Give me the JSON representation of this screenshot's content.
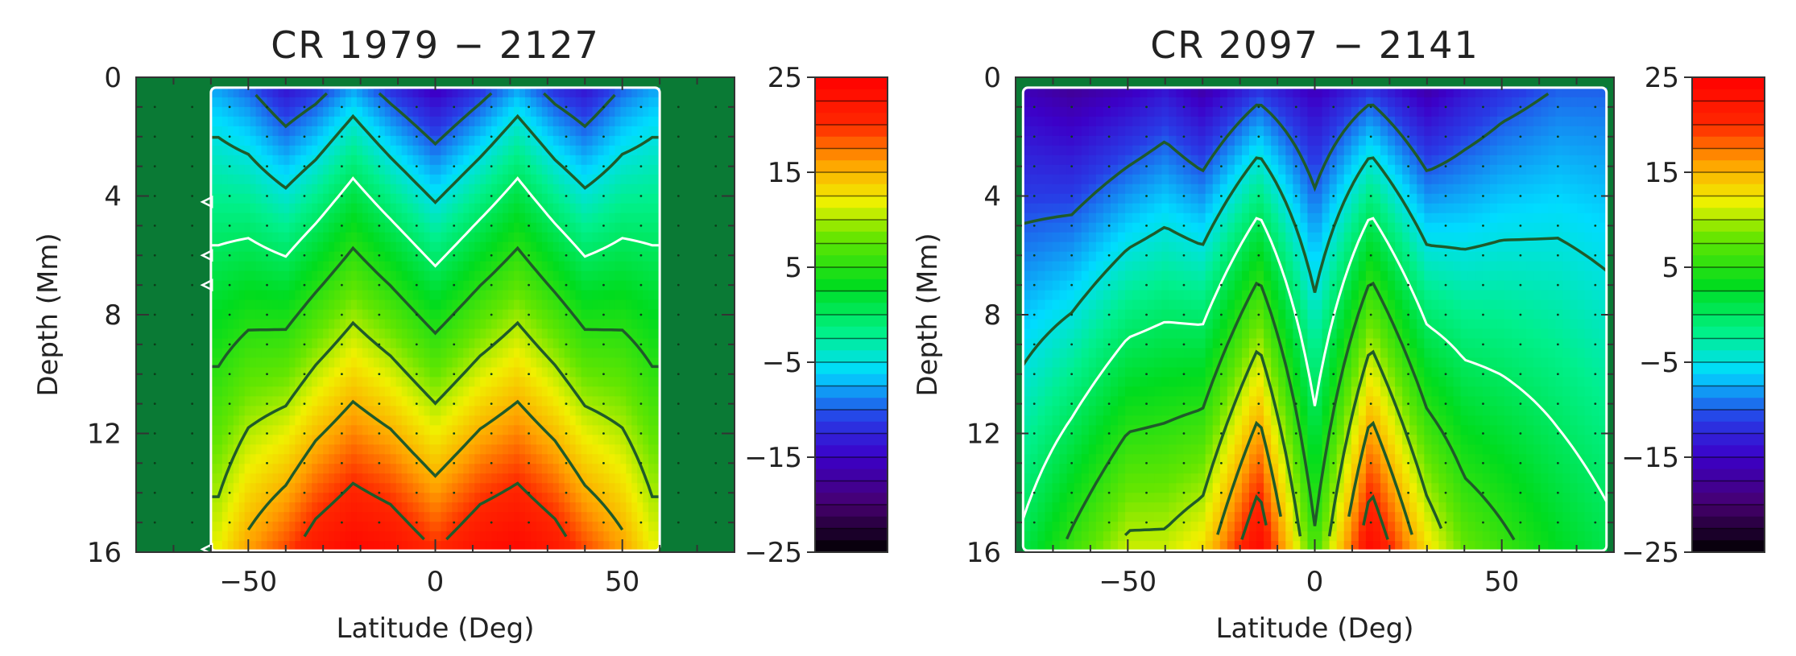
{
  "chart_data": [
    {
      "type": "heatmap",
      "title": "CR 1979 − 2127",
      "xlabel": "Latitude (Deg)",
      "ylabel": "Depth (Mm)",
      "xlim": [
        -80,
        80
      ],
      "ylim": [
        0,
        16
      ],
      "xticks": [
        -50,
        0,
        50
      ],
      "xtick_labels": [
        "−50",
        "0",
        "50"
      ],
      "yticks": [
        0,
        4,
        8,
        12,
        16
      ],
      "ytick_labels": [
        "0",
        "4",
        "8",
        "12",
        "16"
      ],
      "colorbar": {
        "min": -25,
        "max": 25,
        "ticks": [
          25,
          15,
          5,
          -5,
          -15,
          -25
        ],
        "tick_labels": [
          "25",
          "15",
          "5",
          "−5",
          "−15",
          "−25"
        ]
      },
      "data_lat_range": [
        -60,
        60
      ],
      "surface_profile": [
        [
          -58,
          -8
        ],
        [
          -50,
          -10
        ],
        [
          -40,
          -14
        ],
        [
          -32,
          -12
        ],
        [
          -22,
          -8
        ],
        [
          -12,
          -12
        ],
        [
          0,
          -16
        ],
        [
          12,
          -12
        ],
        [
          22,
          -8
        ],
        [
          32,
          -12
        ],
        [
          40,
          -14
        ],
        [
          50,
          -10
        ],
        [
          58,
          -8
        ]
      ],
      "deep_profile": [
        [
          -58,
          12
        ],
        [
          -50,
          16
        ],
        [
          -40,
          19
        ],
        [
          -32,
          22
        ],
        [
          -22,
          24
        ],
        [
          -12,
          23
        ],
        [
          0,
          20
        ],
        [
          12,
          23
        ],
        [
          22,
          24
        ],
        [
          32,
          22
        ],
        [
          40,
          19
        ],
        [
          50,
          16
        ],
        [
          58,
          12
        ]
      ],
      "contour_levels": [
        -10,
        -5,
        0,
        5,
        10,
        15,
        20
      ],
      "zero_contour_color": "#ffffff",
      "background_color": "#0a7a35",
      "markers": [
        {
          "lat": -61,
          "depth": 4.2
        },
        {
          "lat": -61,
          "depth": 6.0
        },
        {
          "lat": -61,
          "depth": 7.0
        },
        {
          "lat": -61,
          "depth": 15.9
        }
      ]
    },
    {
      "type": "heatmap",
      "title": "CR 2097 − 2141",
      "xlabel": "Latitude (Deg)",
      "ylabel": "Depth (Mm)",
      "xlim": [
        -80,
        80
      ],
      "ylim": [
        0,
        16
      ],
      "xticks": [
        -50,
        0,
        50
      ],
      "xtick_labels": [
        "−50",
        "0",
        "50"
      ],
      "yticks": [
        0,
        4,
        8,
        12,
        16
      ],
      "ytick_labels": [
        "0",
        "4",
        "8",
        "12",
        "16"
      ],
      "colorbar": {
        "min": -25,
        "max": 25,
        "ticks": [
          25,
          15,
          5,
          -5,
          -15,
          -25
        ],
        "tick_labels": [
          "25",
          "15",
          "5",
          "−5",
          "−15",
          "−25"
        ]
      },
      "data_lat_range": [
        -78,
        78
      ],
      "surface_profile": [
        [
          -78,
          -16
        ],
        [
          -65,
          -18
        ],
        [
          -50,
          -16
        ],
        [
          -40,
          -14
        ],
        [
          -30,
          -17
        ],
        [
          -15,
          -12
        ],
        [
          0,
          -16
        ],
        [
          15,
          -12
        ],
        [
          30,
          -17
        ],
        [
          40,
          -14
        ],
        [
          50,
          -12
        ],
        [
          65,
          -10
        ],
        [
          78,
          -10
        ]
      ],
      "deep_profile": [
        [
          -78,
          1
        ],
        [
          -65,
          6
        ],
        [
          -50,
          11
        ],
        [
          -40,
          11
        ],
        [
          -30,
          13
        ],
        [
          -15,
          24
        ],
        [
          0,
          6
        ],
        [
          15,
          24
        ],
        [
          30,
          13
        ],
        [
          40,
          8
        ],
        [
          50,
          6
        ],
        [
          65,
          3
        ],
        [
          78,
          1
        ]
      ],
      "contour_levels": [
        -10,
        -5,
        0,
        5,
        10,
        15,
        20
      ],
      "zero_contour_color": "#ffffff",
      "background_color": "#0a7a35",
      "markers": []
    }
  ]
}
